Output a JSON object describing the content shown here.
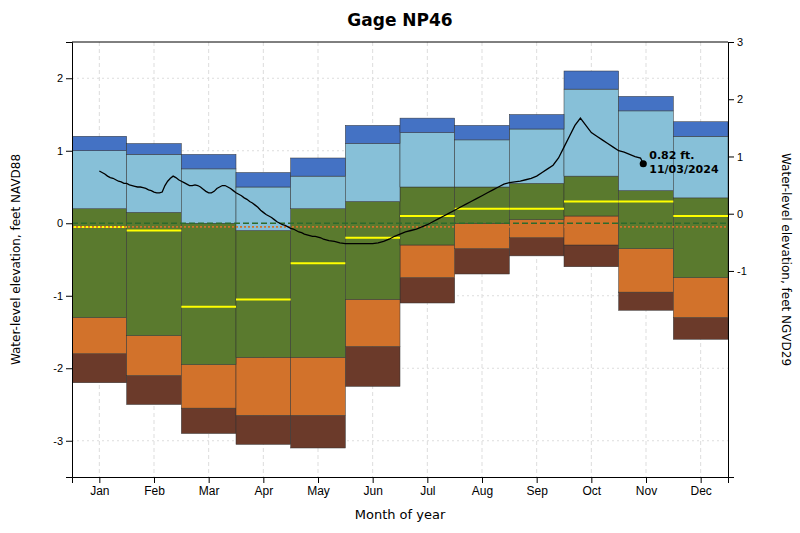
{
  "chart_data": {
    "type": "bar",
    "title": "Gage NP46",
    "xlabel": "Month of year",
    "ylabel": "Water-level elevation, feet NAVD88",
    "y2label": "Water-level elevation, feet NGVD29",
    "x": [
      1,
      2,
      3,
      4,
      5,
      6,
      7,
      8,
      9,
      10,
      11,
      12
    ],
    "xlim": [
      0.5,
      12.5
    ],
    "xticks": [
      {
        "value": 1,
        "label": "Jan"
      },
      {
        "value": 2,
        "label": "Feb"
      },
      {
        "value": 3,
        "label": "Mar"
      },
      {
        "value": 4,
        "label": "Apr"
      },
      {
        "value": 5,
        "label": "May"
      },
      {
        "value": 6,
        "label": "Jun"
      },
      {
        "value": 7,
        "label": "Jul"
      },
      {
        "value": 8,
        "label": "Aug"
      },
      {
        "value": 9,
        "label": "Sep"
      },
      {
        "value": 10,
        "label": "Oct"
      },
      {
        "value": 11,
        "label": "Nov"
      },
      {
        "value": 12,
        "label": "Dec"
      }
    ],
    "ylim": [
      -3.5,
      2.5
    ],
    "yticks": [
      -3,
      -2,
      -1,
      0,
      1,
      2
    ],
    "y2lim": [
      -4.6,
      3
    ],
    "y2ticks": [
      -1,
      0,
      1,
      2,
      3
    ],
    "grid": true,
    "series": [
      {
        "color": "#6b3a2a",
        "low": [
          -2.2,
          -2.5,
          -2.9,
          -3.05,
          -3.1,
          -2.25,
          -1.1,
          -0.7,
          -0.45,
          -0.6,
          -1.2,
          -1.6
        ],
        "high": [
          -1.8,
          -2.1,
          -2.55,
          -2.65,
          -2.65,
          -1.7,
          -0.75,
          -0.35,
          -0.2,
          -0.3,
          -0.95,
          -1.3
        ]
      },
      {
        "color": "#d2722b",
        "low": [
          -1.8,
          -2.1,
          -2.55,
          -2.65,
          -2.65,
          -1.7,
          -0.75,
          -0.35,
          -0.2,
          -0.3,
          -0.95,
          -1.3
        ],
        "high": [
          -1.3,
          -1.55,
          -1.95,
          -1.85,
          -1.85,
          -1.05,
          -0.3,
          0.0,
          0.05,
          0.1,
          -0.35,
          -0.75
        ]
      },
      {
        "color": "#5a7a2e",
        "low": [
          -1.3,
          -1.55,
          -1.95,
          -1.85,
          -1.85,
          -1.05,
          -0.3,
          0.0,
          0.05,
          0.1,
          -0.35,
          -0.75
        ],
        "high": [
          0.2,
          0.15,
          0.0,
          -0.1,
          0.2,
          0.3,
          0.5,
          0.5,
          0.55,
          0.65,
          0.45,
          0.35
        ]
      },
      {
        "color": "#87c0d8",
        "low": [
          0.2,
          0.15,
          0.0,
          -0.1,
          0.2,
          0.3,
          0.5,
          0.5,
          0.55,
          0.65,
          0.45,
          0.35
        ],
        "high": [
          1.0,
          0.95,
          0.75,
          0.5,
          0.65,
          1.1,
          1.25,
          1.15,
          1.3,
          1.85,
          1.55,
          1.2
        ]
      },
      {
        "color": "#4472c4",
        "low": [
          1.0,
          0.95,
          0.75,
          0.5,
          0.65,
          1.1,
          1.25,
          1.15,
          1.3,
          1.85,
          1.55,
          1.2
        ],
        "high": [
          1.2,
          1.1,
          0.95,
          0.7,
          0.9,
          1.35,
          1.45,
          1.35,
          1.5,
          2.1,
          1.75,
          1.4
        ]
      }
    ],
    "median": {
      "color": "#ffff00",
      "values": [
        -0.05,
        -0.1,
        -1.15,
        -1.05,
        -0.55,
        -0.2,
        0.1,
        0.2,
        0.2,
        0.3,
        0.3,
        0.1
      ]
    },
    "reference_lines": [
      {
        "y": 0.0,
        "color": "#2d6a2d",
        "line_style": "dashed"
      },
      {
        "y": -0.05,
        "color": "#d2722b",
        "line_style": "dotted"
      }
    ],
    "observation": {
      "color": "#000000",
      "x": [
        1.0,
        1.05,
        1.1,
        1.15,
        1.2,
        1.25,
        1.3,
        1.35,
        1.4,
        1.45,
        1.5,
        1.55,
        1.6,
        1.65,
        1.7,
        1.75,
        1.8,
        1.85,
        1.9,
        1.95,
        2.0,
        2.05,
        2.1,
        2.15,
        2.2,
        2.25,
        2.3,
        2.35,
        2.4,
        2.45,
        2.5,
        2.55,
        2.6,
        2.65,
        2.7,
        2.75,
        2.8,
        2.85,
        2.9,
        2.95,
        3.0,
        3.05,
        3.1,
        3.15,
        3.2,
        3.25,
        3.3,
        3.35,
        3.4,
        3.45,
        3.5,
        3.55,
        3.6,
        3.65,
        3.7,
        3.75,
        3.8,
        3.85,
        3.9,
        3.95,
        4.0,
        4.05,
        4.1,
        4.15,
        4.2,
        4.25,
        4.3,
        4.35,
        4.4,
        4.45,
        4.5,
        4.55,
        4.6,
        4.65,
        4.7,
        4.75,
        4.8,
        4.85,
        4.9,
        4.95,
        5.0,
        5.05,
        5.1,
        5.15,
        5.2,
        5.3,
        5.4,
        5.5,
        6.0,
        6.1,
        6.2,
        6.3,
        6.4,
        6.5,
        6.6,
        6.7,
        6.8,
        6.9,
        7.0,
        7.1,
        7.2,
        7.3,
        7.4,
        7.5,
        7.6,
        7.7,
        7.8,
        7.9,
        8.0,
        8.1,
        8.2,
        8.3,
        8.4,
        8.5,
        8.6,
        8.7,
        8.8,
        8.9,
        9.0,
        9.1,
        9.2,
        9.3,
        9.4,
        9.5,
        9.6,
        9.7,
        9.8,
        9.9,
        10.0,
        10.1,
        10.2,
        10.3,
        10.4,
        10.5,
        10.6,
        10.7,
        10.8,
        10.9,
        10.95
      ],
      "y": [
        0.72,
        0.7,
        0.68,
        0.65,
        0.63,
        0.62,
        0.6,
        0.58,
        0.57,
        0.55,
        0.55,
        0.53,
        0.52,
        0.51,
        0.5,
        0.5,
        0.49,
        0.48,
        0.46,
        0.45,
        0.43,
        0.42,
        0.42,
        0.43,
        0.52,
        0.58,
        0.62,
        0.65,
        0.63,
        0.6,
        0.58,
        0.56,
        0.54,
        0.52,
        0.52,
        0.53,
        0.52,
        0.5,
        0.47,
        0.44,
        0.42,
        0.42,
        0.44,
        0.48,
        0.5,
        0.52,
        0.52,
        0.5,
        0.48,
        0.45,
        0.42,
        0.4,
        0.38,
        0.35,
        0.33,
        0.3,
        0.28,
        0.25,
        0.22,
        0.18,
        0.15,
        0.12,
        0.1,
        0.08,
        0.05,
        0.02,
        0.0,
        -0.02,
        -0.03,
        -0.05,
        -0.07,
        -0.08,
        -0.1,
        -0.12,
        -0.13,
        -0.15,
        -0.16,
        -0.17,
        -0.18,
        -0.18,
        -0.19,
        -0.2,
        -0.22,
        -0.23,
        -0.24,
        -0.25,
        -0.27,
        -0.28,
        -0.28,
        -0.27,
        -0.25,
        -0.22,
        -0.18,
        -0.15,
        -0.12,
        -0.1,
        -0.08,
        -0.05,
        -0.02,
        0.02,
        0.06,
        0.1,
        0.14,
        0.18,
        0.22,
        0.26,
        0.3,
        0.34,
        0.38,
        0.42,
        0.46,
        0.5,
        0.54,
        0.56,
        0.57,
        0.58,
        0.6,
        0.62,
        0.65,
        0.7,
        0.75,
        0.8,
        0.9,
        1.05,
        1.2,
        1.35,
        1.45,
        1.35,
        1.25,
        1.2,
        1.15,
        1.1,
        1.05,
        1.0,
        0.98,
        0.95,
        0.92,
        0.9,
        0.82
      ]
    },
    "annotation": {
      "x": 10.95,
      "y": 0.82,
      "color": "#000000",
      "marker": "circle",
      "lines": [
        "0.82 ft.",
        "11/03/2024"
      ]
    }
  }
}
